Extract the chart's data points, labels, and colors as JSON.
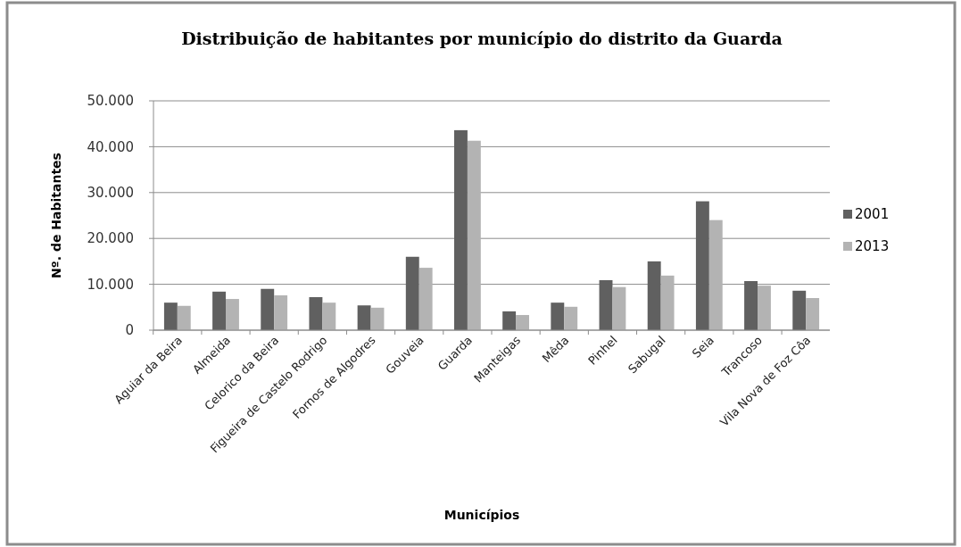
{
  "chart_data": {
    "type": "bar",
    "title": "Distribuição de habitantes por município do distrito da Guarda",
    "xlabel": "Municípios",
    "ylabel": "Nº. de Habitantes",
    "categories": [
      "Aguiar da Beira",
      "Almeida",
      "Celorico da Beira",
      "Figueira de Castelo Rodrigo",
      "Fornos de Algodres",
      "Gouveia",
      "Guarda",
      "Manteigas",
      "Mêda",
      "Pinhel",
      "Sabugal",
      "Seia",
      "Trancoso",
      "Vila Nova de Foz Côa"
    ],
    "series": [
      {
        "name": "2001",
        "color": "#606060",
        "values": [
          6000,
          8400,
          9000,
          7200,
          5400,
          16000,
          43600,
          4100,
          6000,
          10900,
          15000,
          28100,
          10700,
          8600
        ]
      },
      {
        "name": "2013",
        "color": "#b3b3b3",
        "values": [
          5300,
          6800,
          7600,
          6000,
          4900,
          13600,
          41300,
          3300,
          5100,
          9400,
          11900,
          24000,
          9700,
          7000
        ]
      }
    ],
    "ylim": [
      0,
      50000
    ],
    "yticks": [
      0,
      {
        "value": 10000,
        "label": "10.000"
      },
      {
        "value": 20000,
        "label": "20.000"
      },
      {
        "value": 30000,
        "label": "30.000"
      },
      {
        "value": 40000,
        "label": "40.000"
      },
      {
        "value": 50000,
        "label": "50.000"
      }
    ],
    "grid": "y",
    "legend": "right"
  }
}
